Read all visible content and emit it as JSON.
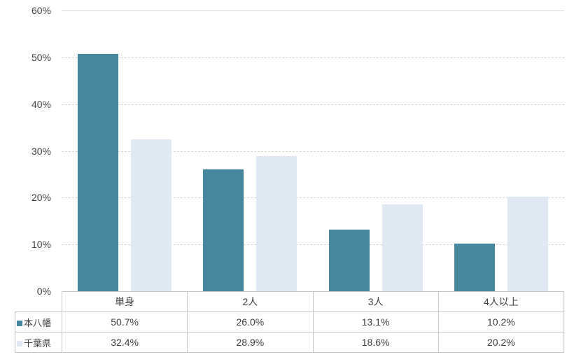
{
  "chart_data": {
    "type": "bar",
    "title": "",
    "xlabel": "",
    "ylabel": "",
    "categories": [
      "単身",
      "2人",
      "3人",
      "4人以上"
    ],
    "series": [
      {
        "name": "本八幡",
        "color": "#45889E",
        "values": [
          50.7,
          26.0,
          13.1,
          10.2
        ],
        "display": [
          "50.7%",
          "26.0%",
          "13.1%",
          "10.2%"
        ]
      },
      {
        "name": "千葉県",
        "color": "#DEE9F4",
        "values": [
          32.4,
          28.9,
          18.6,
          20.2
        ],
        "display": [
          "32.4%",
          "28.9%",
          "18.6%",
          "20.2%"
        ]
      }
    ],
    "ylim": [
      0,
      60
    ],
    "y_tick_labels": [
      "60%",
      "50%",
      "40%",
      "30%",
      "20%",
      "10%",
      "0%"
    ],
    "grid": true,
    "gridline_style": "dashed",
    "gridline_color": "#d9d9d9",
    "table_border_color": "#c6c6c6",
    "legend_position": "table-left-column"
  }
}
